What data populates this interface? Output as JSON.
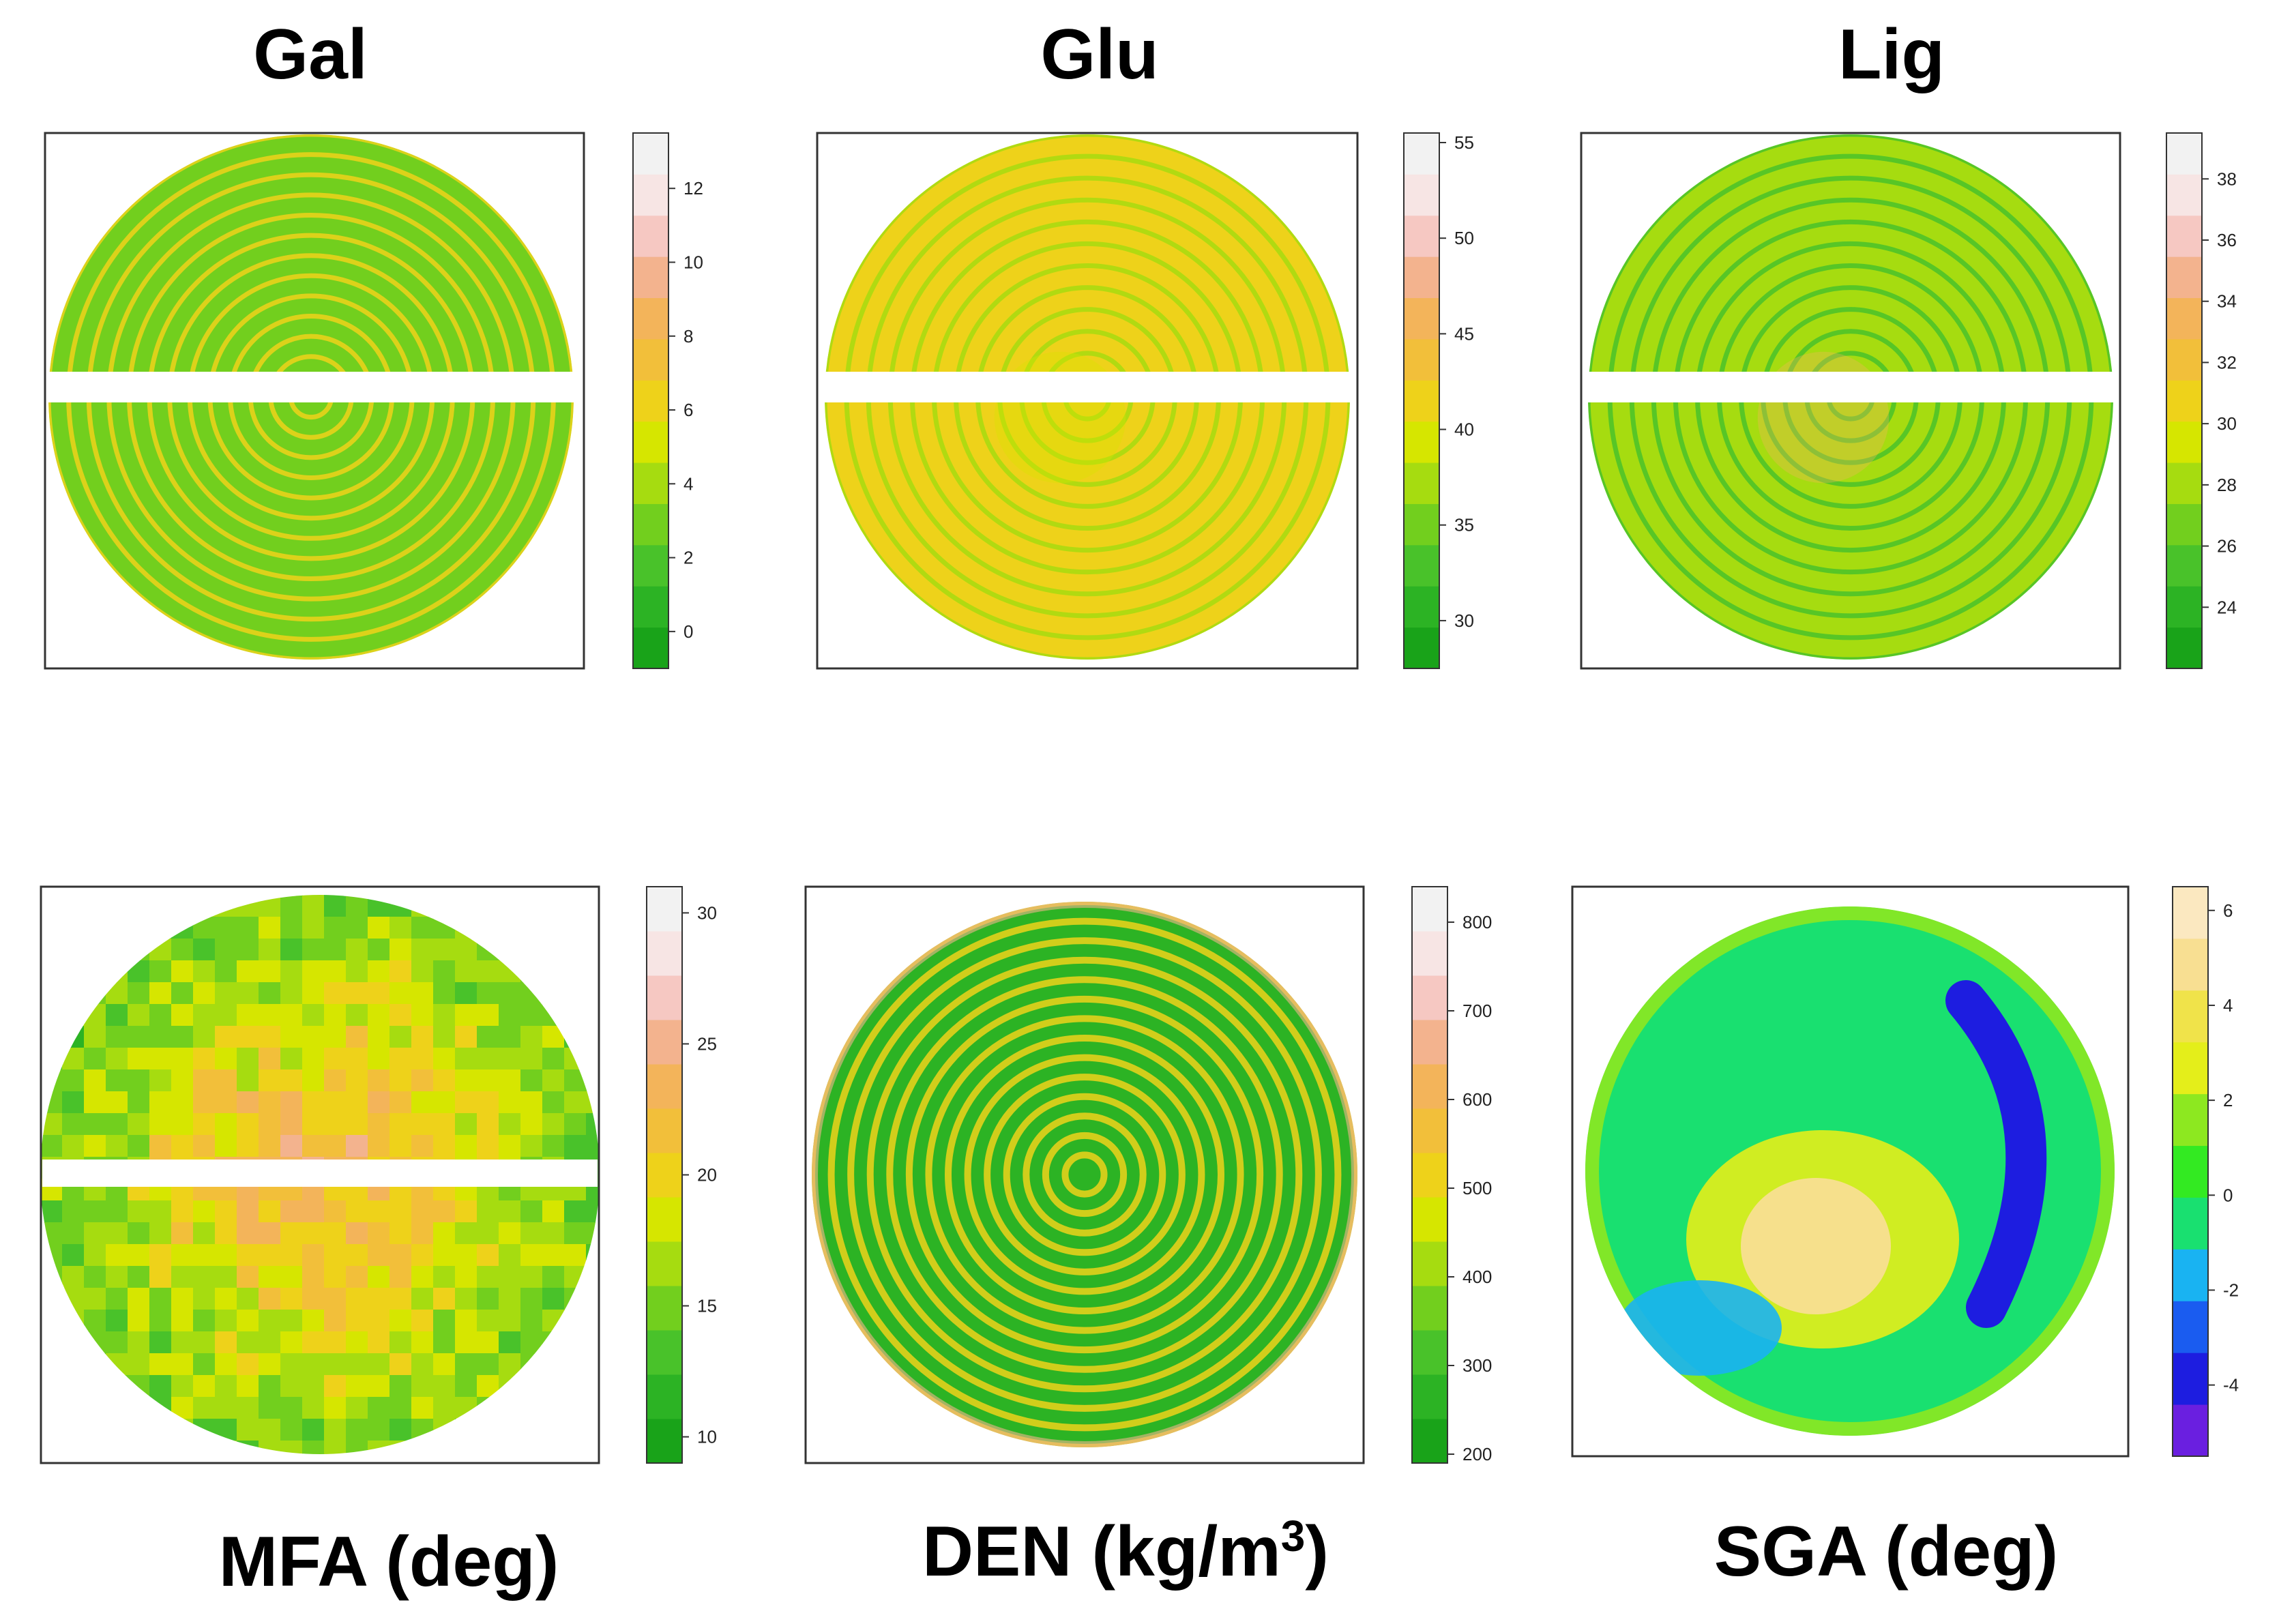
{
  "chart_data": [
    {
      "type": "heatmap",
      "title": "Gal",
      "title_position": "top",
      "pattern": "rings",
      "rings": 13,
      "gap_band": "horizontal",
      "colorbar": {
        "min": -1,
        "max": 13.5,
        "ticks": [
          0,
          2,
          4,
          6,
          8,
          10,
          12
        ]
      },
      "dominant_color": "#7fcf1f"
    },
    {
      "type": "heatmap",
      "title": "Glu",
      "title_position": "top",
      "pattern": "rings",
      "rings": 12,
      "gap_band": "horizontal",
      "colorbar": {
        "min": 27.5,
        "max": 55.5,
        "ticks": [
          30,
          35,
          40,
          45,
          50,
          55
        ]
      },
      "dominant_color": "#f0c040"
    },
    {
      "type": "heatmap",
      "title": "Lig",
      "title_position": "top",
      "pattern": "rings",
      "rings": 12,
      "gap_band": "horizontal",
      "colorbar": {
        "min": 22,
        "max": 39.5,
        "ticks": [
          24,
          26,
          28,
          30,
          32,
          34,
          36,
          38
        ]
      },
      "dominant_color": "#a8d63a"
    },
    {
      "type": "heatmap",
      "title": "MFA (deg)",
      "title_position": "bottom",
      "pattern": "blocks",
      "gap_band": "horizontal",
      "colorbar": {
        "min": 9,
        "max": 31,
        "ticks": [
          10,
          15,
          20,
          25,
          30
        ]
      },
      "dominant_color": "#c8d838"
    },
    {
      "type": "heatmap",
      "title": "DEN (kg/m³)",
      "title_position": "bottom",
      "pattern": "rings",
      "rings": 14,
      "colorbar": {
        "min": 190,
        "max": 840,
        "ticks": [
          200,
          300,
          400,
          500,
          600,
          700,
          800
        ]
      },
      "dominant_color": "#22b81e"
    },
    {
      "type": "heatmap",
      "title": "SGA (deg)",
      "title_position": "bottom",
      "pattern": "smooth",
      "colorbar": {
        "min": -5.5,
        "max": 6.5,
        "ticks": [
          -4,
          -2,
          0,
          2,
          4,
          6
        ]
      },
      "dominant_color": "#3de04a"
    }
  ],
  "palettes": {
    "terrain": [
      "#19a319",
      "#2cb324",
      "#49c22a",
      "#72cf1e",
      "#a6dc10",
      "#d6e600",
      "#eed21a",
      "#f2bf3a",
      "#f3b45a",
      "#f3b38e",
      "#f6c8c2",
      "#f7e5e4",
      "#f2f2f2"
    ],
    "sga": [
      "#6a1fe0",
      "#1d1de0",
      "#1a5cf0",
      "#19b3f2",
      "#19e070",
      "#33ea22",
      "#8de820",
      "#e4ee1a",
      "#f0e34a",
      "#f8df92",
      "#fbe8c0"
    ]
  }
}
